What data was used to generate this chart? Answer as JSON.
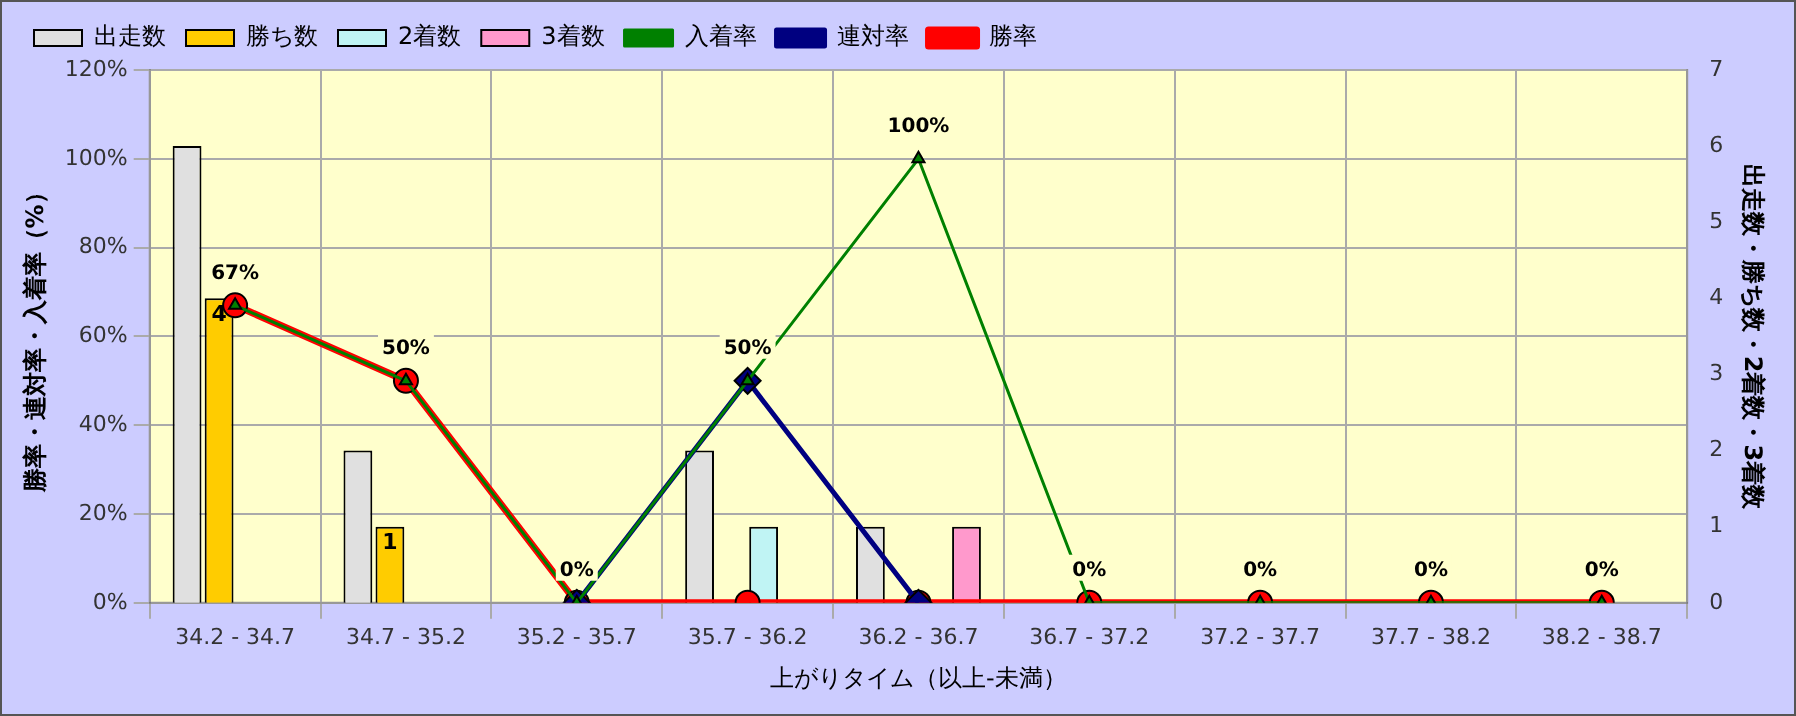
{
  "chart_data": {
    "type": "bar",
    "xlabel": "上がりタイム（以上-未満）",
    "ylabel": "勝率・連対率・入着率（%）",
    "y2label": "出走数・勝ち数・2着数・3着数",
    "categories": [
      "34.2 - 34.7",
      "34.7 - 35.2",
      "35.2 - 35.7",
      "35.7 - 36.2",
      "36.2 - 36.7",
      "36.7 - 37.2",
      "37.2 - 37.7",
      "37.7 - 38.2",
      "38.2 - 38.7"
    ],
    "series": [
      {
        "name": "出走数",
        "type": "bar",
        "axis": "y2",
        "color": "#e0e0e0",
        "values": [
          6,
          2,
          0,
          2,
          1,
          0,
          0,
          0,
          0
        ]
      },
      {
        "name": "勝ち数",
        "type": "bar",
        "axis": "y2",
        "color": "#ffcc00",
        "values": [
          4,
          1,
          0,
          0,
          0,
          0,
          0,
          0,
          0
        ],
        "value_labels": [
          "4",
          "1",
          null,
          null,
          null,
          null,
          null,
          null,
          null
        ]
      },
      {
        "name": "2着数",
        "type": "bar",
        "axis": "y2",
        "color": "#c0f4f4",
        "values": [
          0,
          0,
          0,
          1,
          0,
          0,
          0,
          0,
          0
        ]
      },
      {
        "name": "3着数",
        "type": "bar",
        "axis": "y2",
        "color": "#ff99cc",
        "values": [
          0,
          0,
          0,
          0,
          1,
          0,
          0,
          0,
          0
        ]
      },
      {
        "name": "入着率",
        "type": "line",
        "marker": "triangle",
        "color": "#008000",
        "values": [
          67,
          50,
          0,
          50,
          100,
          0,
          0,
          0,
          0
        ],
        "value_labels": [
          "67%",
          "50%",
          "0%",
          "50%",
          "100%",
          "0%",
          "0%",
          "0%",
          "0%"
        ]
      },
      {
        "name": "連対率",
        "type": "line",
        "marker": "diamond",
        "color": "#000080",
        "values": [
          null,
          null,
          0,
          50,
          0,
          null,
          null,
          null,
          null
        ]
      },
      {
        "name": "勝率",
        "type": "line",
        "marker": "circle",
        "color": "#ff0000",
        "values": [
          67,
          50,
          0,
          0,
          0,
          0,
          0,
          0,
          0
        ]
      }
    ],
    "ylim": [
      0,
      120
    ],
    "yticks": [
      {
        "value": 0,
        "label": "0%"
      },
      {
        "value": 20,
        "label": "20%"
      },
      {
        "value": 40,
        "label": "40%"
      },
      {
        "value": 60,
        "label": "60%"
      },
      {
        "value": 80,
        "label": "80%"
      },
      {
        "value": 100,
        "label": "100%"
      },
      {
        "value": 120,
        "label": "120%"
      }
    ],
    "y2lim": [
      0,
      7
    ],
    "y2ticks": [
      0,
      1,
      2,
      3,
      4,
      5,
      6,
      7
    ],
    "grid": true,
    "legend": "top",
    "line_style": "solid"
  }
}
